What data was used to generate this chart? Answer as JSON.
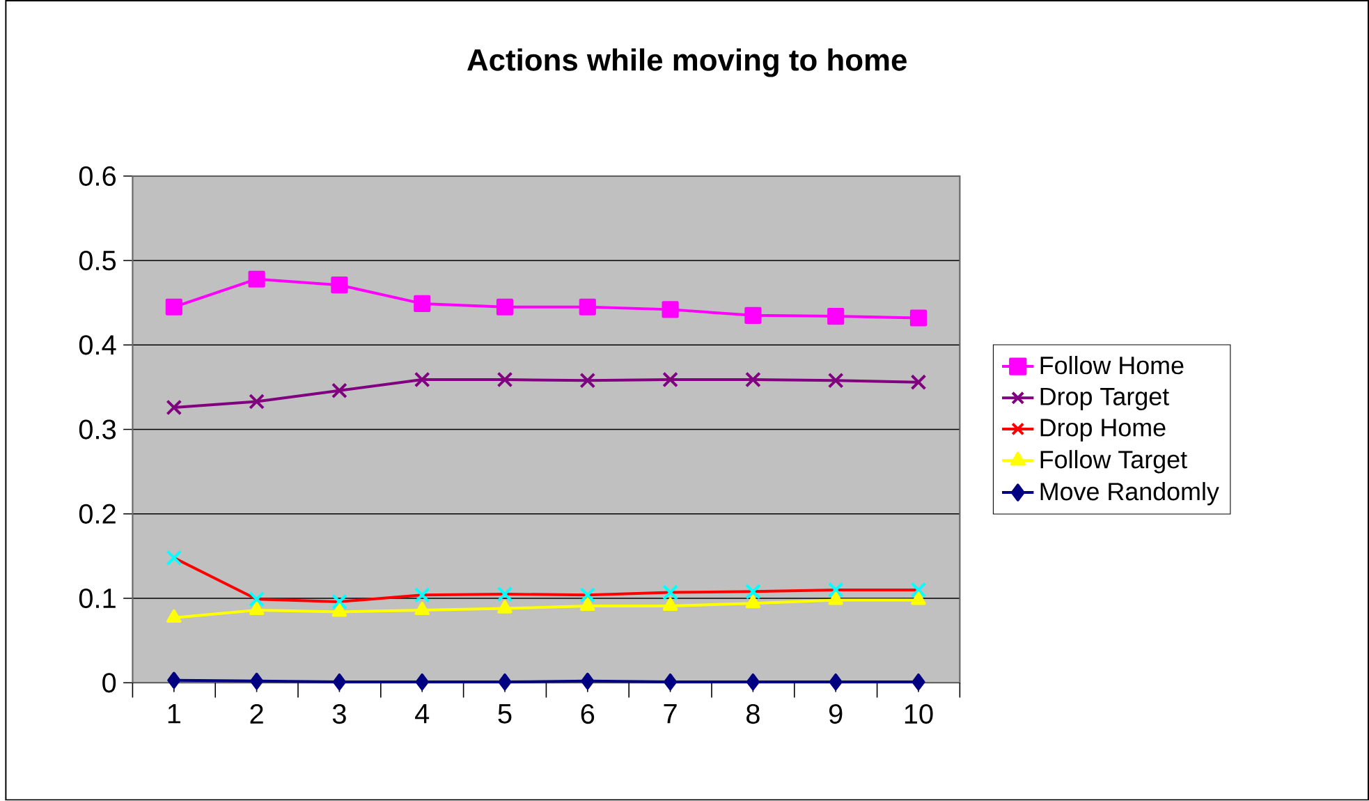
{
  "chart_data": {
    "type": "line",
    "title": "Actions while moving to home",
    "categories": [
      "1",
      "2",
      "3",
      "4",
      "5",
      "6",
      "7",
      "8",
      "9",
      "10"
    ],
    "ylim": [
      0,
      0.6
    ],
    "yticks": [
      0,
      0.1,
      0.2,
      0.3,
      0.4,
      0.5,
      0.6
    ],
    "grid": "y",
    "legend": "right",
    "series": [
      {
        "name": "Follow Home",
        "color": "#ff00ff",
        "marker": "square",
        "values": [
          0.445,
          0.478,
          0.471,
          0.449,
          0.445,
          0.445,
          0.442,
          0.435,
          0.434,
          0.432
        ]
      },
      {
        "name": "Drop Target",
        "color": "#800080",
        "marker": "cross",
        "values": [
          0.326,
          0.333,
          0.346,
          0.359,
          0.359,
          0.358,
          0.359,
          0.359,
          0.358,
          0.356
        ]
      },
      {
        "name": "Drop Home",
        "color": "#ff0000",
        "colors": [
          "#00ffff",
          "#00ffff",
          "#00ffff",
          "#00ffff",
          "#00ffff",
          "#00ffff",
          "#00ffff",
          "#00ffff",
          "#00ffff",
          "#00ffff"
        ],
        "marker": "cross",
        "values": [
          0.148,
          0.099,
          0.096,
          0.104,
          0.105,
          0.104,
          0.107,
          0.108,
          0.11,
          0.11
        ]
      },
      {
        "name": "Follow Target",
        "color": "#ffff00",
        "marker": "triangle",
        "values": [
          0.077,
          0.086,
          0.084,
          0.086,
          0.088,
          0.091,
          0.091,
          0.094,
          0.098,
          0.098
        ]
      },
      {
        "name": "Move Randomly",
        "color": "#000080",
        "marker": "diamond",
        "values": [
          0.003,
          0.002,
          0.001,
          0.001,
          0.001,
          0.002,
          0.001,
          0.001,
          0.001,
          0.001
        ]
      }
    ]
  }
}
